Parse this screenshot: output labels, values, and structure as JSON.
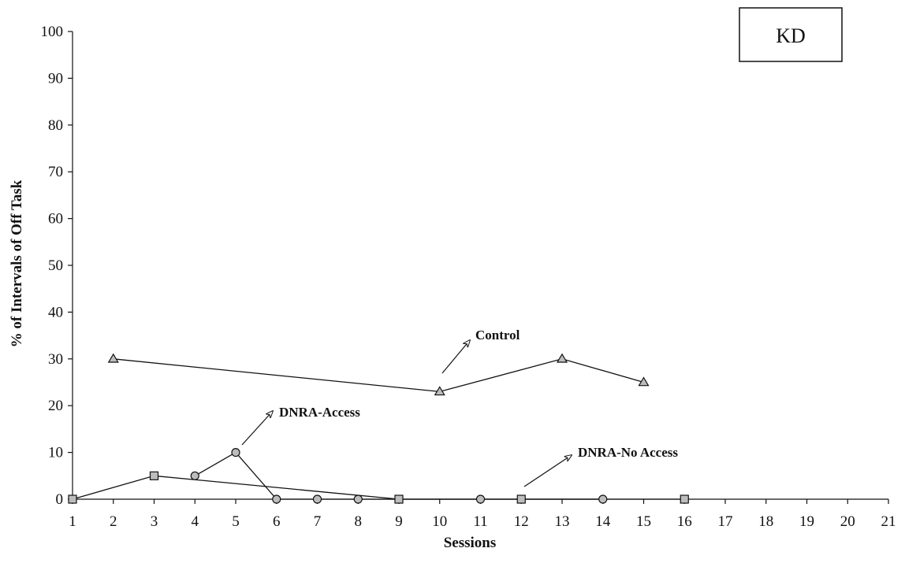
{
  "chart_data": {
    "type": "line",
    "title": "",
    "xlabel": "Sessions",
    "ylabel": "% of Intervals of Off Task",
    "xlim": [
      1,
      21
    ],
    "ylim": [
      0,
      100
    ],
    "x_ticks": [
      "1",
      "2",
      "3",
      "4",
      "5",
      "6",
      "7",
      "8",
      "9",
      "10",
      "11",
      "12",
      "13",
      "14",
      "15",
      "16",
      "17",
      "18",
      "19",
      "20",
      "21"
    ],
    "y_ticks": [
      "0",
      "10",
      "20",
      "30",
      "40",
      "50",
      "60",
      "70",
      "80",
      "90",
      "100"
    ],
    "grid": false,
    "badge": "KD",
    "series": [
      {
        "name": "Control",
        "marker": "triangle",
        "points": [
          [
            2,
            30
          ],
          [
            10,
            23
          ],
          [
            13,
            30
          ],
          [
            15,
            25
          ]
        ]
      },
      {
        "name": "DNRA-Access",
        "marker": "circle",
        "points": [
          [
            4,
            5
          ],
          [
            5,
            10
          ],
          [
            6,
            0
          ],
          [
            7,
            0
          ],
          [
            8,
            0
          ],
          [
            11,
            0
          ],
          [
            14,
            0
          ]
        ]
      },
      {
        "name": "DNRA-No Access",
        "marker": "square",
        "points": [
          [
            1,
            0
          ],
          [
            3,
            5
          ],
          [
            9,
            0
          ],
          [
            12,
            0
          ],
          [
            16,
            0
          ]
        ]
      }
    ],
    "annotations": [
      {
        "text": "Control",
        "target_series": "Control"
      },
      {
        "text": "DNRA-Access",
        "target_series": "DNRA-Access"
      },
      {
        "text": "DNRA-No Access",
        "target_series": "DNRA-No Access"
      }
    ]
  }
}
